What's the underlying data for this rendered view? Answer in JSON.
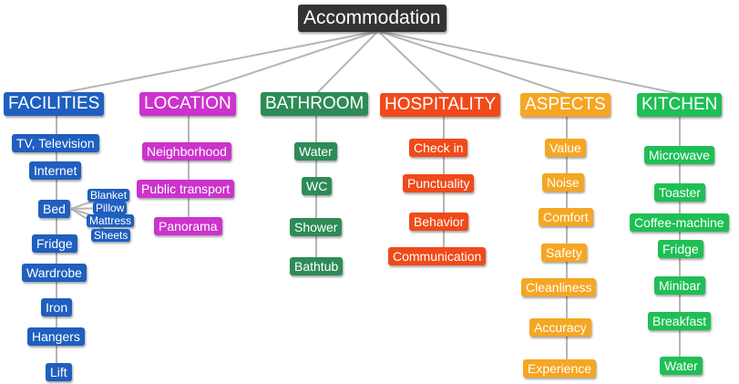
{
  "root": {
    "label": "Accommodation"
  },
  "categories": [
    {
      "label": "FACILITIES",
      "color": "#1f5fbf",
      "items": [
        "TV, Television",
        "Internet",
        "Bed",
        "Fridge",
        "Wardrobe",
        "Iron",
        "Hangers",
        "Lift"
      ],
      "bed_subitems": [
        "Blanket",
        "Pillow",
        "Mattress",
        "Sheets"
      ]
    },
    {
      "label": "LOCATION",
      "color": "#cc33cc",
      "items": [
        "Neighborhood",
        "Public transport",
        "Panorama"
      ]
    },
    {
      "label": "BATHROOM",
      "color": "#2e8b57",
      "items": [
        "Water",
        "WC",
        "Shower",
        "Bathtub"
      ]
    },
    {
      "label": "HOSPITALITY",
      "color": "#f04a1a",
      "items": [
        "Check in",
        "Punctuality",
        "Behavior",
        "Communication"
      ]
    },
    {
      "label": "ASPECTS",
      "color": "#f5a623",
      "items": [
        "Value",
        "Noise",
        "Comfort",
        "Safety",
        "Cleanliness",
        "Accuracy",
        "Experience"
      ]
    },
    {
      "label": "KITCHEN",
      "color": "#1fbf55",
      "items": [
        "Microwave",
        "Toaster",
        "Coffee-machine",
        "Fridge",
        "Minibar",
        "Breakfast",
        "Water"
      ]
    }
  ]
}
